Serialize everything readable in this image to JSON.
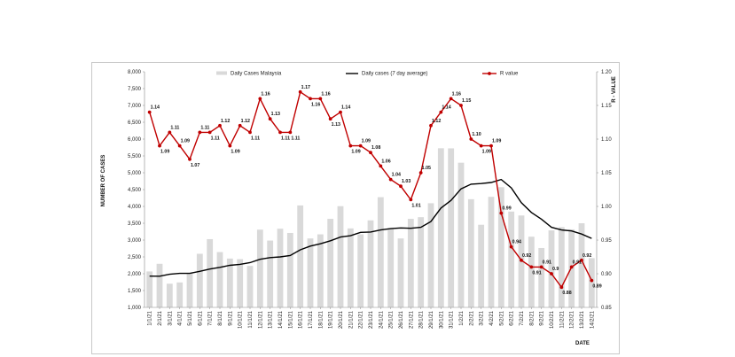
{
  "chart_data": {
    "type": "bar+line",
    "title": "",
    "ylabel": "NUMBER OF CASES",
    "y2label": "R - VALUE",
    "xlabel": "DATE",
    "ylim": [
      1000,
      8000
    ],
    "y_ticks": [
      "1,000",
      "1,500",
      "2,000",
      "2,500",
      "3,000",
      "3,500",
      "4,000",
      "4,500",
      "5,000",
      "5,500",
      "6,000",
      "6,500",
      "7,000",
      "7,500",
      "8,000"
    ],
    "y2lim": [
      0.85,
      1.2
    ],
    "y2_ticks": [
      "0.85",
      "0.90",
      "0.95",
      "1.00",
      "1.05",
      "1.10",
      "1.15",
      "1.20"
    ],
    "legend_position": "top",
    "grid": false,
    "categories": [
      "1/1/21",
      "2/1/21",
      "3/1/21",
      "4/1/21",
      "5/1/21",
      "6/1/21",
      "7/1/21",
      "8/1/21",
      "9/1/21",
      "10/1/21",
      "11/1/21",
      "12/1/21",
      "13/1/21",
      "14/1/21",
      "15/1/21",
      "16/1/21",
      "17/1/21",
      "18/1/21",
      "19/1/21",
      "20/1/21",
      "21/1/21",
      "22/1/21",
      "23/1/21",
      "24/1/21",
      "25/1/21",
      "26/1/21",
      "27/1/21",
      "28/1/21",
      "29/1/21",
      "30/1/21",
      "31/1/21",
      "1/2/21",
      "2/2/21",
      "3/2/21",
      "4/2/21",
      "5/2/21",
      "6/2/21",
      "7/2/21",
      "8/2/21",
      "9/2/21",
      "10/2/21",
      "11/2/21",
      "12/2/21",
      "13/2/21",
      "14/2/21"
    ],
    "series": [
      {
        "name": "Daily Cases Malaysia",
        "kind": "bar",
        "axis": "left",
        "color": "#d9d9d9",
        "values": [
          2068,
          2295,
          1704,
          1741,
          2027,
          2593,
          3027,
          2643,
          2451,
          2433,
          2232,
          3309,
          2985,
          3337,
          3211,
          4029,
          3048,
          3170,
          3631,
          4008,
          3346,
          3170,
          3585,
          4275,
          3346,
          3048,
          3631,
          3680,
          4095,
          5728,
          5725,
          5298,
          4214,
          3455,
          4284,
          4571,
          3847,
          3731,
          3100,
          2764,
          3288,
          3384,
          3318,
          3499,
          2464
        ]
      },
      {
        "name": "Daily cases (7 day average)",
        "kind": "line",
        "axis": "left",
        "color": "#000000",
        "values": [
          1930,
          1925,
          1985,
          2010,
          2010,
          2070,
          2140,
          2190,
          2250,
          2280,
          2330,
          2430,
          2480,
          2500,
          2540,
          2710,
          2820,
          2890,
          2980,
          3090,
          3130,
          3230,
          3240,
          3300,
          3340,
          3360,
          3350,
          3380,
          3550,
          3950,
          4180,
          4520,
          4660,
          4680,
          4710,
          4800,
          4550,
          4110,
          3820,
          3620,
          3380,
          3300,
          3270,
          3180,
          3050
        ]
      },
      {
        "name": "R value",
        "kind": "line-markers",
        "axis": "right",
        "color": "#c00000",
        "values": [
          1.14,
          1.09,
          1.11,
          1.09,
          1.07,
          1.11,
          1.11,
          1.12,
          1.09,
          1.12,
          1.11,
          1.16,
          1.13,
          1.11,
          1.11,
          1.17,
          1.16,
          1.16,
          1.13,
          1.14,
          1.09,
          1.09,
          1.08,
          1.06,
          1.04,
          1.03,
          1.01,
          1.05,
          1.12,
          1.14,
          1.16,
          1.15,
          1.1,
          1.09,
          1.09,
          0.99,
          0.94,
          0.92,
          0.91,
          0.91,
          0.9,
          0.88,
          0.91,
          0.92,
          0.89
        ],
        "labels": [
          "1.14",
          "1.09",
          "1.11",
          "1.09",
          "1.07",
          "1.11",
          "1.11",
          "1.12",
          "1.09",
          "1.12",
          "1.11",
          "1.16",
          "1.13",
          "1.11",
          "1.11",
          "1.17",
          "1.16",
          "1.16",
          "1.13",
          "1.14",
          "1.09",
          "1.09",
          "1.08",
          "1.06",
          "1.04",
          "1.03",
          "1.01",
          "1.05",
          "1.12",
          "1.14",
          "1.16",
          "1.15",
          "1.10",
          "1.09",
          "1.09",
          "0.99",
          "0.94",
          "0.92",
          "0.91",
          "0.91",
          "0.9",
          "0.88",
          "0.91",
          "0.92",
          "0.89"
        ]
      }
    ]
  }
}
